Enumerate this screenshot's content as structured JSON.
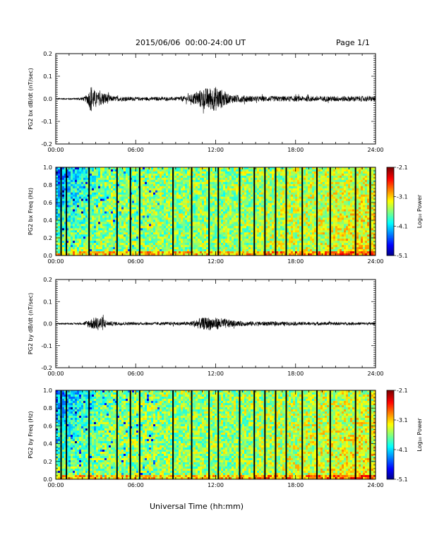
{
  "header": {
    "title": "2015/06/06  00:00-24:00 UT",
    "page": "Page 1/1"
  },
  "footer": {
    "xlabel": "Universal Time (hh:mm)"
  },
  "chart_data": [
    {
      "type": "line",
      "ylabel": "PG2 bx dB/dt (nT/sec)",
      "xlim": [
        0,
        24
      ],
      "ylim": [
        -0.2,
        0.2
      ],
      "yticks": [
        "0.2",
        "0.1",
        "0.0",
        "-0.1",
        "-0.2"
      ],
      "xticks": [
        "00:00",
        "06:00",
        "12:00",
        "18:00",
        "24:00"
      ],
      "grid": false,
      "envelope": [
        {
          "t": 0.0,
          "a": 0.003
        },
        {
          "t": 1.5,
          "a": 0.004
        },
        {
          "t": 2.2,
          "a": 0.01
        },
        {
          "t": 2.5,
          "a": 0.035
        },
        {
          "t": 2.65,
          "a": 0.065
        },
        {
          "t": 3.0,
          "a": 0.03
        },
        {
          "t": 3.6,
          "a": 0.03
        },
        {
          "t": 4.2,
          "a": 0.012
        },
        {
          "t": 6.0,
          "a": 0.008
        },
        {
          "t": 9.0,
          "a": 0.008
        },
        {
          "t": 10.0,
          "a": 0.015
        },
        {
          "t": 11.0,
          "a": 0.045
        },
        {
          "t": 11.5,
          "a": 0.05
        },
        {
          "t": 12.0,
          "a": 0.055
        },
        {
          "t": 12.5,
          "a": 0.04
        },
        {
          "t": 13.0,
          "a": 0.02
        },
        {
          "t": 15.0,
          "a": 0.012
        },
        {
          "t": 18.0,
          "a": 0.012
        },
        {
          "t": 21.0,
          "a": 0.012
        },
        {
          "t": 24.0,
          "a": 0.012
        }
      ]
    },
    {
      "type": "heatmap",
      "ylabel": "PG2 bx Freq (Hz)",
      "colorbar_label": "Log₁₀ Power",
      "colorbar_ticks": [
        "-2.1",
        "-3.1",
        "-4.1",
        "-5.1"
      ],
      "clim": [
        -5.1,
        -2.1
      ],
      "xlim": [
        0,
        24
      ],
      "ylim": [
        0.0,
        1.0
      ],
      "yticks": [
        "1.0",
        "0.8",
        "0.6",
        "0.4",
        "0.2",
        "0.0"
      ],
      "xticks": [
        "00:00",
        "06:00",
        "12:00",
        "18:00",
        "24:00"
      ],
      "gap_lines_hours": [
        0.4,
        0.8,
        2.5,
        4.6,
        5.6,
        6.3,
        8.8,
        10.2,
        11.5,
        12.2,
        13.8,
        14.9,
        15.7,
        16.5,
        17.3,
        18.5,
        19.6,
        20.6,
        22.5,
        23.6
      ]
    },
    {
      "type": "line",
      "ylabel": "PG2 by dB/dt (nT/sec)",
      "xlim": [
        0,
        24
      ],
      "ylim": [
        -0.2,
        0.2
      ],
      "yticks": [
        "0.2",
        "0.1",
        "0.0",
        "-0.1",
        "-0.2"
      ],
      "xticks": [
        "00:00",
        "06:00",
        "12:00",
        "18:00",
        "24:00"
      ],
      "grid": false,
      "envelope": [
        {
          "t": 0.0,
          "a": 0.003
        },
        {
          "t": 2.0,
          "a": 0.004
        },
        {
          "t": 2.5,
          "a": 0.02
        },
        {
          "t": 3.0,
          "a": 0.03
        },
        {
          "t": 3.5,
          "a": 0.032
        },
        {
          "t": 3.9,
          "a": 0.01
        },
        {
          "t": 6.0,
          "a": 0.006
        },
        {
          "t": 10.0,
          "a": 0.008
        },
        {
          "t": 10.8,
          "a": 0.025
        },
        {
          "t": 11.5,
          "a": 0.03
        },
        {
          "t": 12.5,
          "a": 0.025
        },
        {
          "t": 13.5,
          "a": 0.012
        },
        {
          "t": 15.0,
          "a": 0.01
        },
        {
          "t": 18.0,
          "a": 0.008
        },
        {
          "t": 24.0,
          "a": 0.006
        }
      ]
    },
    {
      "type": "heatmap",
      "ylabel": "PG2 by Freq (Hz)",
      "colorbar_label": "Log₁₀ Power",
      "colorbar_ticks": [
        "-2.1",
        "-3.1",
        "-4.1",
        "-5.1"
      ],
      "clim": [
        -5.1,
        -2.1
      ],
      "xlim": [
        0,
        24
      ],
      "ylim": [
        0.0,
        1.0
      ],
      "yticks": [
        "1.0",
        "0.8",
        "0.6",
        "0.4",
        "0.2",
        "0.0"
      ],
      "xticks": [
        "00:00",
        "06:00",
        "12:00",
        "18:00",
        "24:00"
      ],
      "gap_lines_hours": [
        0.4,
        0.8,
        2.5,
        4.6,
        5.6,
        6.3,
        8.8,
        10.2,
        11.5,
        12.2,
        13.8,
        14.9,
        15.7,
        16.5,
        17.3,
        18.5,
        19.6,
        20.6,
        22.5,
        23.6
      ]
    }
  ]
}
